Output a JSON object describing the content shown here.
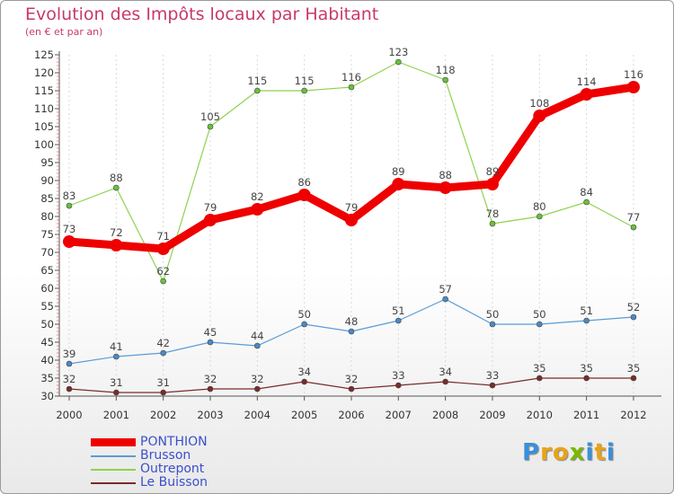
{
  "title": "Evolution des Impôts locaux par Habitant",
  "subtitle": "(en € et par an)",
  "logo": {
    "text": "Proxiti",
    "letters": [
      "P",
      "r",
      "o",
      "x",
      "i",
      "t",
      "i"
    ],
    "colors": [
      "#3b8fd9",
      "#e8a317",
      "#e8a317",
      "#7ab800",
      "#3b8fd9",
      "#e8a317",
      "#3b8fd9"
    ]
  },
  "chart_data": {
    "type": "line",
    "title": "Evolution des Impôts locaux par Habitant",
    "subtitle": "(en € et par an)",
    "categories": [
      "2000",
      "2001",
      "2002",
      "2003",
      "2004",
      "2005",
      "2006",
      "2007",
      "2008",
      "2009",
      "2010",
      "2011",
      "2012"
    ],
    "ylim": [
      30,
      125
    ],
    "yticks": [
      30,
      35,
      40,
      45,
      50,
      55,
      60,
      65,
      70,
      75,
      80,
      85,
      90,
      95,
      100,
      105,
      110,
      115,
      120,
      125
    ],
    "series": [
      {
        "name": "PONTHION",
        "color": "#ee0000",
        "bold": true,
        "values": [
          73,
          72,
          71,
          79,
          82,
          86,
          79,
          89,
          88,
          89,
          108,
          114,
          116
        ]
      },
      {
        "name": "Brusson",
        "color": "#5b9bd5",
        "point_color": "#4a8ac4",
        "values": [
          39,
          41,
          42,
          45,
          44,
          50,
          48,
          51,
          57,
          50,
          50,
          51,
          52
        ]
      },
      {
        "name": "Outrepont",
        "color": "#8fd14f",
        "point_color": "#66c23a",
        "values": [
          83,
          88,
          62,
          105,
          115,
          115,
          116,
          123,
          118,
          78,
          80,
          84,
          77
        ]
      },
      {
        "name": "Le Buisson",
        "color": "#7a2b2b",
        "point_color": "#7a2b2b",
        "values": [
          32,
          31,
          31,
          32,
          32,
          34,
          32,
          33,
          34,
          33,
          35,
          35,
          35
        ]
      }
    ],
    "legend_position": "bottom-left"
  }
}
